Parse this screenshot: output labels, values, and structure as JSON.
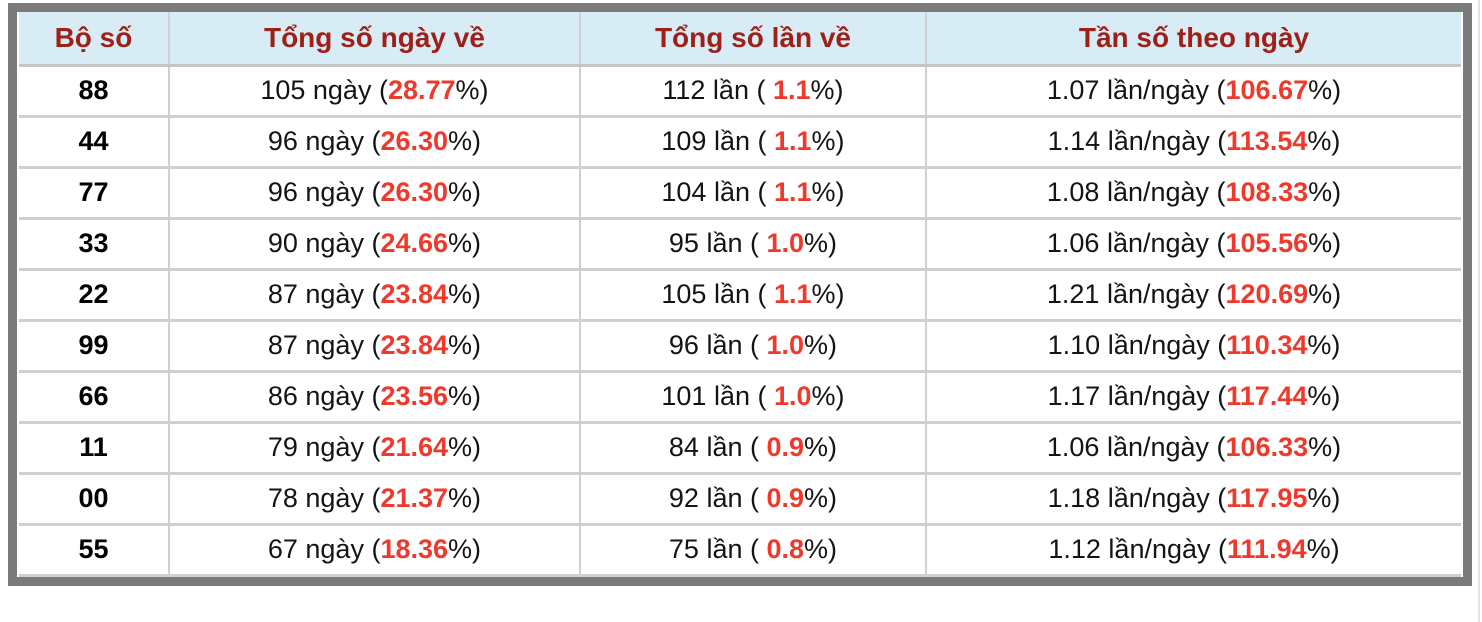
{
  "colors": {
    "header_bg": "#d8ecf5",
    "header_text": "#9e2119",
    "accent_red": "#ee3a2c",
    "frame_border": "#7b7b7b",
    "divider": "#d0d0d0"
  },
  "table": {
    "headers": [
      "Bộ số",
      "Tổng số ngày về",
      "Tổng số lần về",
      "Tần số theo ngày"
    ],
    "pct_suffix": "%)",
    "rows": [
      {
        "pair": "88",
        "days_prefix": "105 ngày (",
        "days_pct": "28.77",
        "times_prefix": "112 lần ( ",
        "times_pct": "1.1",
        "freq_prefix": "1.07 lần/ngày (",
        "freq_pct": "106.67"
      },
      {
        "pair": "44",
        "days_prefix": "96 ngày (",
        "days_pct": "26.30",
        "times_prefix": "109 lần ( ",
        "times_pct": "1.1",
        "freq_prefix": "1.14 lần/ngày (",
        "freq_pct": "113.54"
      },
      {
        "pair": "77",
        "days_prefix": "96 ngày (",
        "days_pct": "26.30",
        "times_prefix": "104 lần ( ",
        "times_pct": "1.1",
        "freq_prefix": "1.08 lần/ngày (",
        "freq_pct": "108.33"
      },
      {
        "pair": "33",
        "days_prefix": "90 ngày (",
        "days_pct": "24.66",
        "times_prefix": "95 lần ( ",
        "times_pct": "1.0",
        "freq_prefix": "1.06 lần/ngày (",
        "freq_pct": "105.56"
      },
      {
        "pair": "22",
        "days_prefix": "87 ngày (",
        "days_pct": "23.84",
        "times_prefix": "105 lần ( ",
        "times_pct": "1.1",
        "freq_prefix": "1.21 lần/ngày (",
        "freq_pct": "120.69"
      },
      {
        "pair": "99",
        "days_prefix": "87 ngày (",
        "days_pct": "23.84",
        "times_prefix": "96 lần ( ",
        "times_pct": "1.0",
        "freq_prefix": "1.10 lần/ngày (",
        "freq_pct": "110.34"
      },
      {
        "pair": "66",
        "days_prefix": "86 ngày (",
        "days_pct": "23.56",
        "times_prefix": "101 lần ( ",
        "times_pct": "1.0",
        "freq_prefix": "1.17 lần/ngày (",
        "freq_pct": "117.44"
      },
      {
        "pair": "11",
        "days_prefix": "79 ngày (",
        "days_pct": "21.64",
        "times_prefix": "84 lần ( ",
        "times_pct": "0.9",
        "freq_prefix": "1.06 lần/ngày (",
        "freq_pct": "106.33"
      },
      {
        "pair": "00",
        "days_prefix": "78 ngày (",
        "days_pct": "21.37",
        "times_prefix": "92 lần ( ",
        "times_pct": "0.9",
        "freq_prefix": "1.18 lần/ngày (",
        "freq_pct": "117.95"
      },
      {
        "pair": "55",
        "days_prefix": "67 ngày (",
        "days_pct": "18.36",
        "times_prefix": "75 lần ( ",
        "times_pct": "0.8",
        "freq_prefix": "1.12 lần/ngày (",
        "freq_pct": "111.94"
      }
    ]
  },
  "chart_data": {
    "type": "table",
    "title": "",
    "columns": [
      "Bộ số",
      "Tổng số ngày về",
      "Tổng số lần về",
      "Tần số theo ngày"
    ],
    "rows": [
      [
        "88",
        "105 ngày (28.77%)",
        "112 lần ( 1.1%)",
        "1.07 lần/ngày (106.67%)"
      ],
      [
        "44",
        "96 ngày (26.30%)",
        "109 lần ( 1.1%)",
        "1.14 lần/ngày (113.54%)"
      ],
      [
        "77",
        "96 ngày (26.30%)",
        "104 lần ( 1.1%)",
        "1.08 lần/ngày (108.33%)"
      ],
      [
        "33",
        "90 ngày (24.66%)",
        "95 lần ( 1.0%)",
        "1.06 lần/ngày (105.56%)"
      ],
      [
        "22",
        "87 ngày (23.84%)",
        "105 lần ( 1.1%)",
        "1.21 lần/ngày (120.69%)"
      ],
      [
        "99",
        "87 ngày (23.84%)",
        "96 lần ( 1.0%)",
        "1.10 lần/ngày (110.34%)"
      ],
      [
        "66",
        "86 ngày (23.56%)",
        "101 lần ( 1.0%)",
        "1.17 lần/ngày (117.44%)"
      ],
      [
        "11",
        "79 ngày (21.64%)",
        "84 lần ( 0.9%)",
        "1.06 lần/ngày (106.33%)"
      ],
      [
        "00",
        "78 ngày (21.37%)",
        "92 lần ( 0.9%)",
        "1.18 lần/ngày (117.95%)"
      ],
      [
        "55",
        "67 ngày (18.36%)",
        "75 lần ( 0.8%)",
        "1.12 lần/ngày (111.94%)"
      ]
    ]
  }
}
